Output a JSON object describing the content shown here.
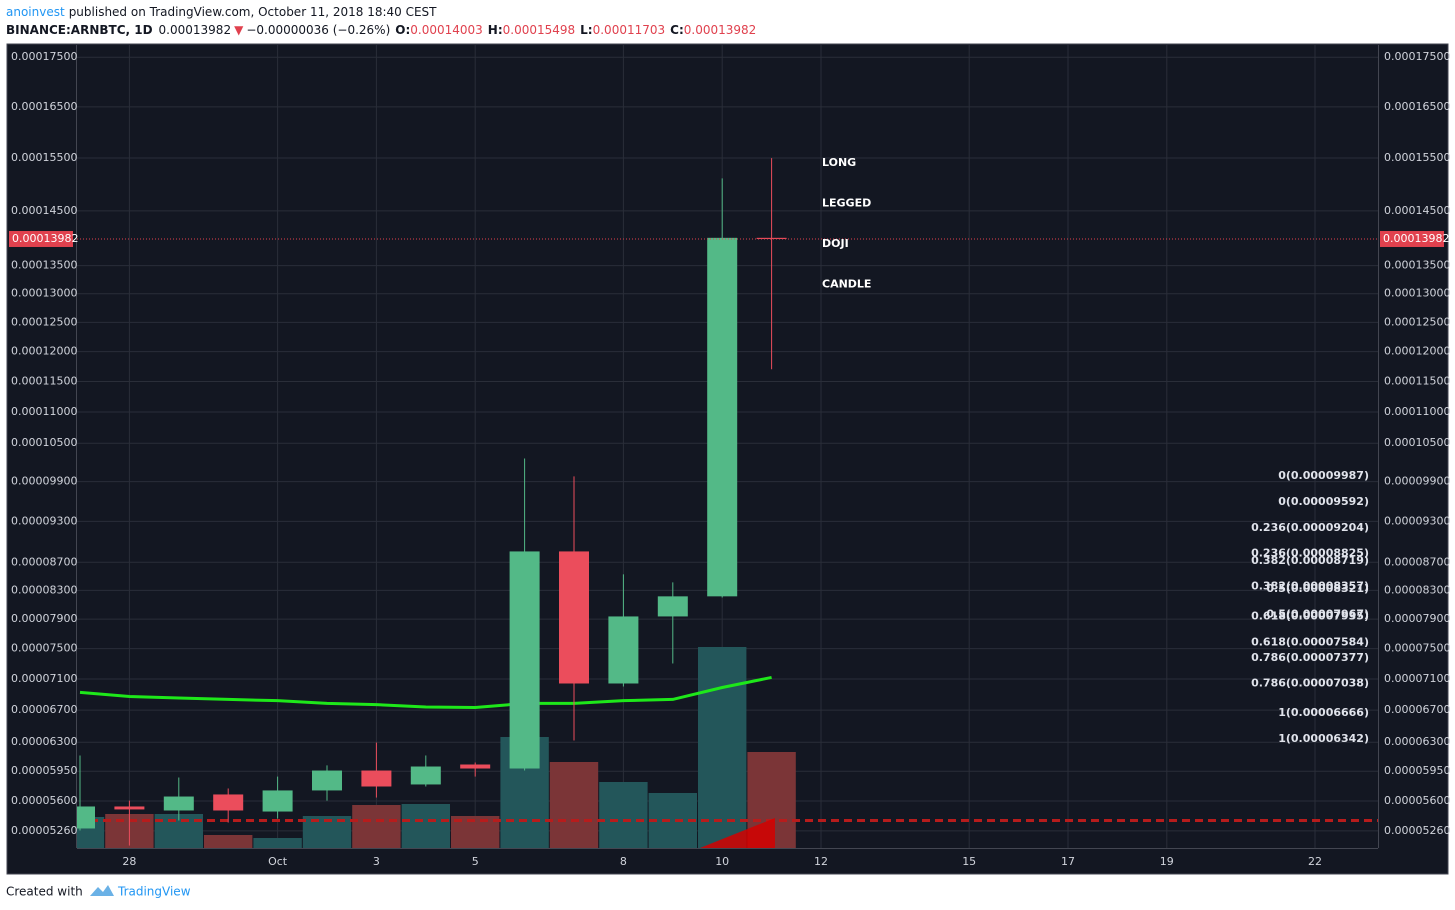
{
  "header": {
    "author": "anoinvest",
    "published": "published on TradingView.com, October 11, 2018 18:40 CEST",
    "symbol": "BINANCE:ARNBTC, 1D",
    "last": "0.00013982",
    "arrow": "▼",
    "change": "−0.00000036 (−0.26%)",
    "ohlc": [
      {
        "label": "O:",
        "value": "0.00014003"
      },
      {
        "label": "H:",
        "value": "0.00015498"
      },
      {
        "label": "L:",
        "value": "0.00011703"
      },
      {
        "label": "C:",
        "value": "0.00013982"
      }
    ]
  },
  "footer": {
    "created": "Created with",
    "brand": "TradingView"
  },
  "chart_data": {
    "type": "candlestick",
    "yscale": "sqrt",
    "grid": true,
    "categories": [
      null,
      "28",
      null,
      null,
      "Oct",
      null,
      "3",
      null,
      "5",
      null,
      null,
      "8",
      null,
      "10",
      null,
      "12",
      null,
      null,
      "15",
      null,
      "17",
      null,
      "19",
      null,
      null,
      "22",
      null
    ],
    "open": [
      5.287e-05,
      5.537e-05,
      5.491e-05,
      5.676e-05,
      5.479e-05,
      5.723e-05,
      5.958e-05,
      5.793e-05,
      6.03e-05,
      5.982e-05,
      8.857e-05,
      7.041e-05,
      7.937e-05,
      8.216e-05,
      0.00014003,
      null,
      null,
      null,
      null,
      null,
      null,
      null,
      null,
      null,
      null,
      null,
      null
    ],
    "high": [
      6.139e-05,
      5.605e-05,
      5.875e-05,
      5.746e-05,
      5.886e-05,
      6.019e-05,
      6.296e-05,
      6.139e-05,
      6.054e-05,
      0.0001026,
      9.982e-05,
      8.527e-05,
      8.413e-05,
      0.0001511,
      0.00015498,
      null,
      null,
      null,
      null,
      null,
      null,
      null,
      null,
      null,
      null,
      null,
      null
    ],
    "low": [
      5.264e-05,
      5.097e-05,
      5.377e-05,
      5.354e-05,
      5.399e-05,
      5.605e-05,
      5.64e-05,
      5.769e-05,
      5.886e-05,
      5.958e-05,
      6.322e-05,
      7.002e-05,
      7.303e-05,
      8.2e-05,
      0.00011703,
      null,
      null,
      null,
      null,
      null,
      null,
      null,
      null,
      null,
      null,
      null,
      null
    ],
    "close": [
      5.537e-05,
      5.503e-05,
      5.652e-05,
      5.491e-05,
      5.723e-05,
      5.958e-05,
      5.769e-05,
      6.006e-05,
      5.982e-05,
      8.857e-05,
      7.041e-05,
      7.937e-05,
      8.216e-05,
      0.00014003,
      0.00013982,
      null,
      null,
      null,
      null,
      null,
      null,
      null,
      null,
      null,
      null,
      null,
      null
    ],
    "volume": [
      31,
      34,
      34,
      13,
      10,
      32,
      43,
      44,
      32,
      111,
      86,
      66,
      55,
      201,
      96,
      null,
      null,
      null,
      null,
      null,
      null,
      null,
      null,
      null,
      null,
      null,
      null
    ],
    "up_color": "#53b987",
    "down_color": "#eb4d5c",
    "volume_up_color": "#23565a",
    "volume_down_color": "#7b3537",
    "ma": {
      "color": "#1ee81a",
      "values": [
        6.926e-05,
        6.874e-05,
        6.855e-05,
        6.836e-05,
        6.82e-05,
        6.785e-05,
        6.77e-05,
        6.74e-05,
        6.734e-05,
        6.785e-05,
        6.785e-05,
        6.82e-05,
        6.836e-05,
        6.989e-05,
        7.12e-05,
        null,
        null,
        null,
        null,
        null,
        null,
        null,
        null,
        null,
        null,
        null,
        null
      ]
    },
    "ylim": [
      5.07e-05,
      0.0001775
    ],
    "yticks": [
      {
        "value": 0.000175,
        "label": "0.00017500"
      },
      {
        "value": 0.000165,
        "label": "0.00016500"
      },
      {
        "value": 0.000155,
        "label": "0.00015500"
      },
      {
        "value": 0.000145,
        "label": "0.00014500"
      },
      {
        "value": 0.000135,
        "label": "0.00013500"
      },
      {
        "value": 0.00013,
        "label": "0.00013000"
      },
      {
        "value": 0.000125,
        "label": "0.00012500"
      },
      {
        "value": 0.00012,
        "label": "0.00012000"
      },
      {
        "value": 0.000115,
        "label": "0.00011500"
      },
      {
        "value": 0.00011,
        "label": "0.00011000"
      },
      {
        "value": 0.000105,
        "label": "0.00010500"
      },
      {
        "value": 9.9e-05,
        "label": "0.00009900"
      },
      {
        "value": 9.3e-05,
        "label": "0.00009300"
      },
      {
        "value": 8.7e-05,
        "label": "0.00008700"
      },
      {
        "value": 8.3e-05,
        "label": "0.00008300"
      },
      {
        "value": 7.9e-05,
        "label": "0.00007900"
      },
      {
        "value": 7.5e-05,
        "label": "0.00007500"
      },
      {
        "value": 7.1e-05,
        "label": "0.00007100"
      },
      {
        "value": 6.7e-05,
        "label": "0.00006700"
      },
      {
        "value": 6.3e-05,
        "label": "0.00006300"
      },
      {
        "value": 5.95e-05,
        "label": "0.00005950"
      },
      {
        "value": 5.6e-05,
        "label": "0.00005600"
      },
      {
        "value": 5.26e-05,
        "label": "0.00005260"
      }
    ],
    "last_price": {
      "value": 0.00013982,
      "label": "0.00013982",
      "color": "#e0414e"
    },
    "support_line": {
      "value": 5.377e-05,
      "color": "#b71c1c"
    },
    "fib_labels": [
      {
        "value": 9.987e-05,
        "label": "0(0.00009987)"
      },
      {
        "value": 9.592e-05,
        "label": "0(0.00009592)"
      },
      {
        "value": 9.204e-05,
        "label": "0.236(0.00009204)"
      },
      {
        "value": 8.825e-05,
        "label": "0.236(0.00008825)"
      },
      {
        "value": 8.719e-05,
        "label": "0.382(0.00008719)"
      },
      {
        "value": 8.357e-05,
        "label": "0.382(0.00008357)"
      },
      {
        "value": 8.321e-05,
        "label": "0.5(0.00008321)"
      },
      {
        "value": 7.967e-05,
        "label": "0.5(0.00007967)"
      },
      {
        "value": 7.935e-05,
        "label": "0.618(0.00007935)"
      },
      {
        "value": 7.584e-05,
        "label": "0.618(0.00007584)"
      },
      {
        "value": 7.377e-05,
        "label": "0.786(0.00007377)"
      },
      {
        "value": 7.038e-05,
        "label": "0.786(0.00007038)"
      },
      {
        "value": 6.666e-05,
        "label": "1(0.00006666)"
      },
      {
        "value": 6.342e-05,
        "label": "1(0.00006342)"
      }
    ],
    "annotation": [
      "LONG",
      "LEGGED",
      "DOJI",
      "CANDLE"
    ]
  }
}
